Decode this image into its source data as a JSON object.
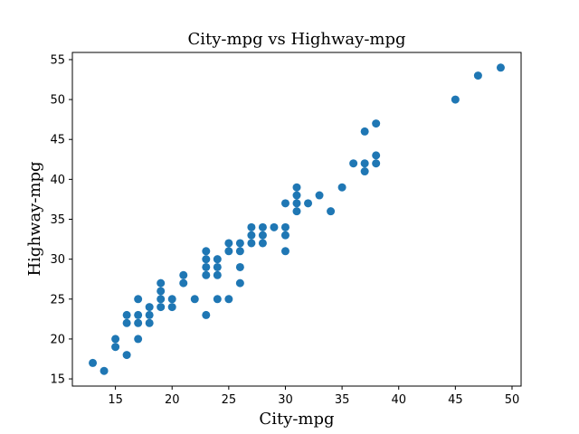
{
  "chart_data": {
    "type": "scatter",
    "title": "City-mpg vs Highway-mpg",
    "xlabel": "City-mpg",
    "ylabel": "Highway-mpg",
    "xlim": [
      11.2,
      50.8
    ],
    "ylim": [
      14.1,
      55.9
    ],
    "xticks": [
      15,
      20,
      25,
      30,
      35,
      40,
      45,
      50
    ],
    "yticks": [
      15,
      20,
      25,
      30,
      35,
      40,
      45,
      50,
      55
    ],
    "grid": false,
    "marker_color": "#1f77b4",
    "points": [
      [
        13,
        17
      ],
      [
        14,
        16
      ],
      [
        15,
        19
      ],
      [
        15,
        20
      ],
      [
        16,
        18
      ],
      [
        16,
        22
      ],
      [
        16,
        23
      ],
      [
        17,
        20
      ],
      [
        17,
        22
      ],
      [
        17,
        23
      ],
      [
        17,
        25
      ],
      [
        18,
        22
      ],
      [
        18,
        23
      ],
      [
        18,
        24
      ],
      [
        19,
        24
      ],
      [
        19,
        25
      ],
      [
        19,
        26
      ],
      [
        19,
        27
      ],
      [
        20,
        24
      ],
      [
        20,
        25
      ],
      [
        21,
        27
      ],
      [
        21,
        28
      ],
      [
        22,
        25
      ],
      [
        23,
        23
      ],
      [
        23,
        28
      ],
      [
        23,
        29
      ],
      [
        23,
        30
      ],
      [
        23,
        31
      ],
      [
        24,
        25
      ],
      [
        24,
        28
      ],
      [
        24,
        29
      ],
      [
        24,
        30
      ],
      [
        25,
        25
      ],
      [
        25,
        31
      ],
      [
        25,
        32
      ],
      [
        26,
        27
      ],
      [
        26,
        29
      ],
      [
        26,
        31
      ],
      [
        26,
        32
      ],
      [
        27,
        32
      ],
      [
        27,
        33
      ],
      [
        27,
        34
      ],
      [
        28,
        32
      ],
      [
        28,
        33
      ],
      [
        28,
        34
      ],
      [
        29,
        34
      ],
      [
        30,
        31
      ],
      [
        30,
        33
      ],
      [
        30,
        34
      ],
      [
        30,
        37
      ],
      [
        31,
        36
      ],
      [
        31,
        37
      ],
      [
        31,
        38
      ],
      [
        31,
        39
      ],
      [
        32,
        37
      ],
      [
        33,
        38
      ],
      [
        34,
        36
      ],
      [
        35,
        39
      ],
      [
        36,
        42
      ],
      [
        37,
        41
      ],
      [
        37,
        42
      ],
      [
        37,
        46
      ],
      [
        38,
        42
      ],
      [
        38,
        43
      ],
      [
        38,
        47
      ],
      [
        45,
        50
      ],
      [
        47,
        53
      ],
      [
        49,
        54
      ]
    ]
  }
}
